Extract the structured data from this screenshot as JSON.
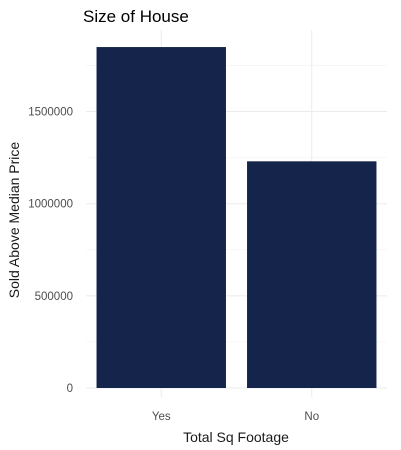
{
  "chart_data": {
    "type": "bar",
    "title": "Size of House",
    "xlabel": "Total Sq Footage",
    "ylabel": "Sold Above Median Price",
    "categories": [
      "Yes",
      "No"
    ],
    "values": [
      1850000,
      1230000
    ],
    "ylim": [
      0,
      1942500
    ],
    "yticks": [
      0,
      500000,
      1000000,
      1500000
    ],
    "ytick_labels": [
      "0",
      "500000",
      "1000000",
      "1500000"
    ],
    "grid": true,
    "bar_color": "#15244a"
  }
}
